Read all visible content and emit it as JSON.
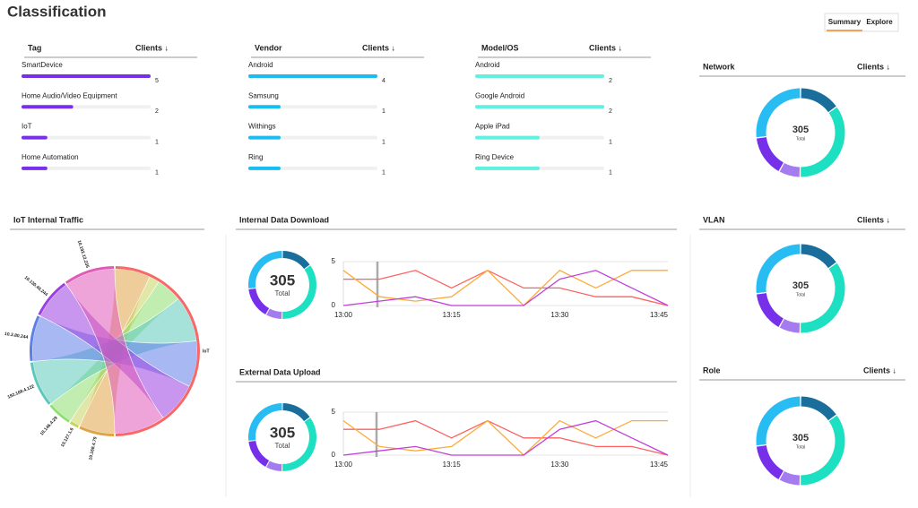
{
  "header": {
    "title": "Classification",
    "tabs": [
      "Summary",
      "Explore"
    ]
  },
  "donut_colors": [
    "#1a6e9c",
    "#1de0c2",
    "#a57cf0",
    "#7630ea",
    "#27bdf2"
  ],
  "tables": [
    {
      "title": "Tag",
      "sort_label": "Clients ↓",
      "color": "#7630ea",
      "categories": [
        "SmartDevice",
        "Home Audio/Video Equipment",
        "IoT",
        "Home Automation"
      ],
      "values": [
        5,
        2,
        1,
        1
      ]
    },
    {
      "title": "Vendor",
      "sort_label": "Clients ↓",
      "color": "#1bbcef",
      "categories": [
        "Android",
        "Samsung",
        "Withings",
        "Ring"
      ],
      "values": [
        4,
        1,
        1,
        1
      ]
    },
    {
      "title": "Model/OS",
      "sort_label": "Clients ↓",
      "color": "#62f0e0",
      "categories": [
        "Android",
        "Google Android",
        "Apple iPad",
        "Ring Device"
      ],
      "values": [
        2,
        2,
        1,
        1
      ]
    }
  ],
  "donut_panels": [
    {
      "title": "Network",
      "sort_label": "Clients ↓",
      "total": 305,
      "total_label": "Total",
      "values": [
        46,
        107,
        24,
        46,
        82
      ]
    },
    {
      "title": "VLAN",
      "sort_label": "Clients ↓",
      "total": 305,
      "total_label": "Total",
      "values": [
        46,
        107,
        24,
        46,
        82
      ]
    },
    {
      "title": "Role",
      "sort_label": "Clients ↓",
      "total": 305,
      "total_label": "Total",
      "values": [
        46,
        107,
        24,
        46,
        82
      ]
    }
  ],
  "traffic": {
    "title": "IoT Internal Traffic",
    "nodes": [
      {
        "label": "IoT",
        "value": 50,
        "color": "#f76868"
      },
      {
        "label": "10.168.4.79",
        "value": 7,
        "color": "#e0a448"
      },
      {
        "label": "10.127.1.6",
        "value": 2,
        "color": "#c9d45c"
      },
      {
        "label": "10.146.4.29",
        "value": 5,
        "color": "#8ee070"
      },
      {
        "label": "192.168.4.122",
        "value": 9,
        "color": "#5cc8bc"
      },
      {
        "label": "10.3.80.244",
        "value": 9,
        "color": "#5e7ee8"
      },
      {
        "label": "10.130.40.244",
        "value": 8,
        "color": "#9b3fe0"
      },
      {
        "label": "10.192.12.235",
        "value": 10,
        "color": "#e05ab8"
      }
    ]
  },
  "line_panels": [
    {
      "title": "Internal Data Download",
      "donut": {
        "total": 305,
        "total_label": "Total",
        "values": [
          46,
          107,
          24,
          46,
          82
        ]
      },
      "chart": {
        "type": "line",
        "categories": [
          "13:00",
          null,
          null,
          "13:15",
          null,
          null,
          "13:30",
          null,
          null,
          "13:45"
        ],
        "ylim": [
          0,
          5
        ],
        "yticks": [
          0,
          5
        ],
        "series": [
          {
            "color": "#fc6161",
            "values": [
              3,
              3,
              4,
              2,
              4,
              2,
              2,
              1,
              1,
              0
            ]
          },
          {
            "color": "#fcab3c",
            "values": [
              4,
              1,
              0.5,
              1,
              4,
              0,
              4,
              2,
              4,
              4
            ]
          },
          {
            "color": "#c040d8",
            "values": [
              0,
              0.5,
              1,
              0,
              0,
              0,
              3,
              4,
              2,
              0
            ]
          }
        ]
      }
    },
    {
      "title": "External Data Upload",
      "donut": {
        "total": 305,
        "total_label": "Total",
        "values": [
          46,
          107,
          24,
          46,
          82
        ]
      },
      "chart": {
        "type": "line",
        "categories": [
          "13:00",
          null,
          null,
          "13:15",
          null,
          null,
          "13:30",
          null,
          null,
          "13:45"
        ],
        "ylim": [
          0,
          5
        ],
        "yticks": [
          0,
          5
        ],
        "series": [
          {
            "color": "#fc6161",
            "values": [
              3,
              3,
              4,
              2,
              4,
              2,
              2,
              1,
              1,
              0
            ]
          },
          {
            "color": "#fcab3c",
            "values": [
              4,
              1,
              0.5,
              1,
              4,
              0,
              4,
              2,
              4,
              4
            ]
          },
          {
            "color": "#c040d8",
            "values": [
              0,
              0.5,
              1,
              0,
              0,
              0,
              3,
              4,
              2,
              0
            ]
          }
        ]
      }
    }
  ]
}
